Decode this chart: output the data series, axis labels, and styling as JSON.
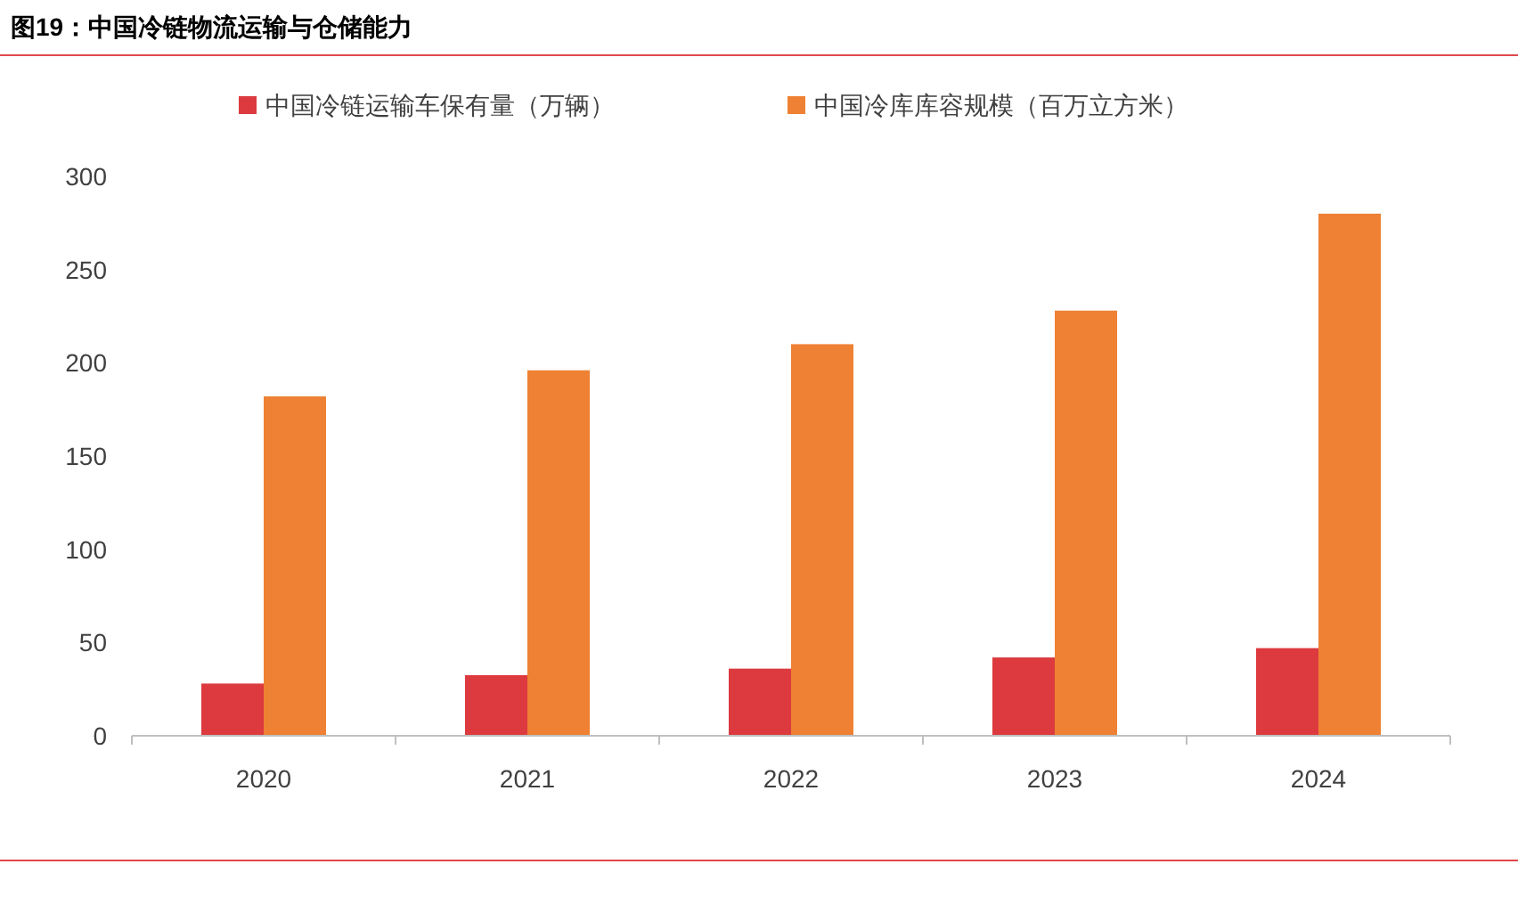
{
  "chart_data": {
    "type": "bar",
    "title": "图19：中国冷链物流运输与仓储能力",
    "categories": [
      "2020",
      "2021",
      "2022",
      "2023",
      "2024"
    ],
    "series": [
      {
        "name": "中国冷链运输车保有量（万辆）",
        "color": "#dc3a3e",
        "values": [
          28,
          32.5,
          36,
          42,
          47
        ]
      },
      {
        "name": "中国冷库库容规模（百万立方米）",
        "color": "#ee8133",
        "values": [
          182,
          196,
          210,
          228,
          280
        ]
      }
    ],
    "ylim": [
      0,
      300
    ],
    "yticks": [
      0,
      50,
      100,
      150,
      200,
      250,
      300
    ],
    "legend": "top"
  }
}
